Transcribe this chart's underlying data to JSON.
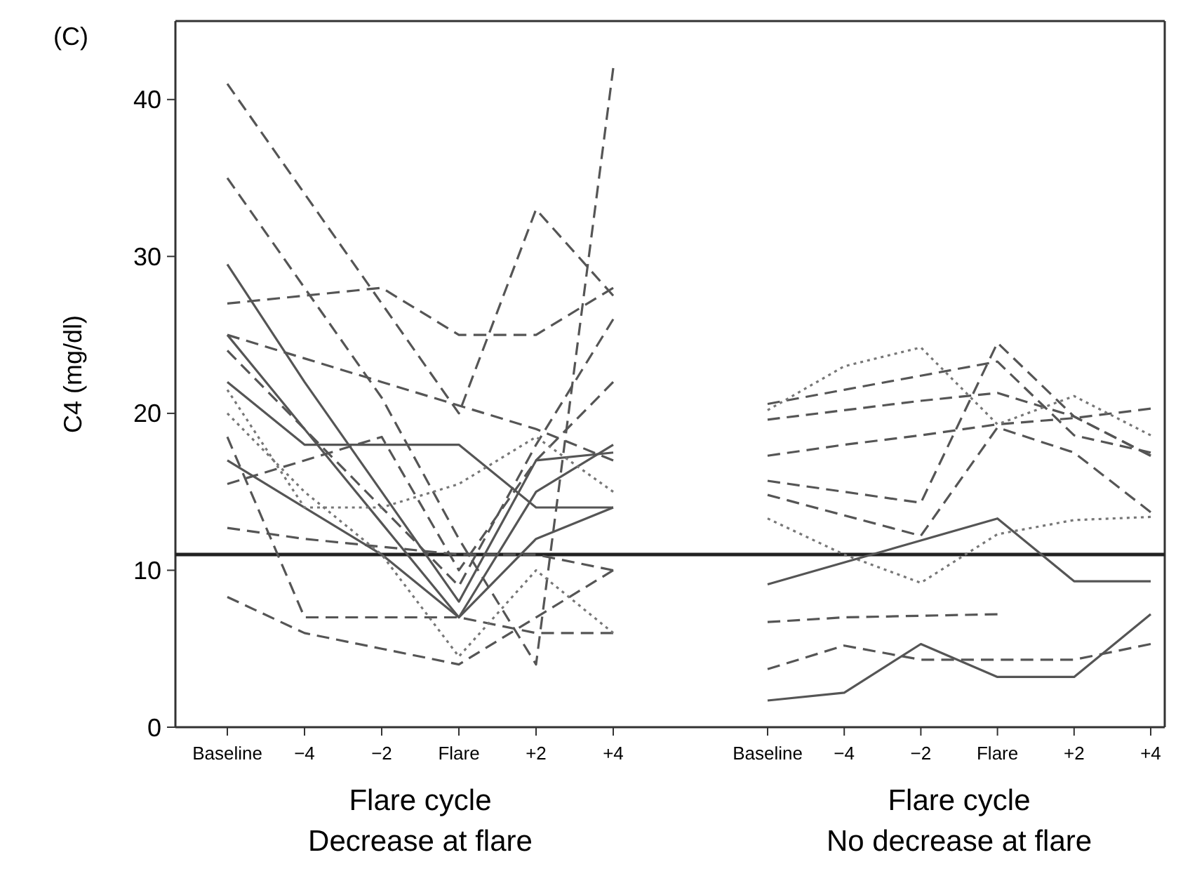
{
  "chart_data": [
    {
      "type": "line",
      "title": "(C)",
      "ylabel": "C4 (mg/dl)",
      "xlabel": "Flare cycle",
      "annotations": [
        "Decrease at flare"
      ],
      "categories": [
        "Baseline",
        "−4",
        "−2",
        "Flare",
        "+2",
        "+4"
      ],
      "ylim": [
        0,
        45
      ],
      "yticks": [
        0,
        10,
        20,
        30,
        40
      ],
      "ref_lines": [
        {
          "axis": "y",
          "value": 11,
          "color": "#222222"
        }
      ],
      "series": [
        {
          "color": "#555555",
          "line_style": "dashed",
          "values": [
            41,
            34,
            27,
            20,
            33,
            27.5
          ]
        },
        {
          "color": "#555555",
          "line_style": "dashed",
          "values": [
            35,
            28,
            21,
            12,
            4,
            42
          ]
        },
        {
          "color": "#555555",
          "line_style": "solid",
          "values": [
            29.5,
            22,
            15,
            8,
            17,
            17.5
          ]
        },
        {
          "color": "#555555",
          "line_style": "dashed",
          "values": [
            27,
            27.5,
            28,
            25,
            25,
            28
          ]
        },
        {
          "color": "#555555",
          "line_style": "dashed",
          "values": [
            25,
            23.5,
            22,
            20.5,
            19,
            17
          ]
        },
        {
          "color": "#555555",
          "line_style": "solid",
          "values": [
            25,
            19,
            13,
            7,
            12,
            14
          ]
        },
        {
          "color": "#555555",
          "line_style": "dashed",
          "values": [
            24,
            19,
            14,
            9,
            18,
            26
          ]
        },
        {
          "color": "#555555",
          "line_style": "dashed",
          "values": [
            15.5,
            17,
            18.5,
            10,
            17,
            22
          ]
        },
        {
          "color": "#555555",
          "line_style": "solid",
          "values": [
            17,
            14,
            11,
            7,
            15,
            18
          ]
        },
        {
          "color": "#555555",
          "line_style": "solid",
          "values": [
            22,
            18,
            18,
            18,
            14,
            14
          ]
        },
        {
          "color": "#555555",
          "line_style": "dashed",
          "values": [
            12.7,
            12,
            11.5,
            11,
            11,
            10
          ]
        },
        {
          "color": "#555555",
          "line_style": "dashed",
          "values": [
            18.5,
            7,
            7,
            7,
            6,
            6
          ]
        },
        {
          "color": "#555555",
          "line_style": "dashed",
          "values": [
            8.3,
            6,
            5,
            4,
            7,
            10
          ]
        },
        {
          "color": "#777777",
          "line_style": "dotted",
          "values": [
            21.5,
            14,
            14,
            15.5,
            18.5,
            15
          ]
        },
        {
          "color": "#777777",
          "line_style": "dotted",
          "values": [
            20,
            15,
            11,
            4.5,
            10,
            6
          ]
        }
      ]
    },
    {
      "type": "line",
      "xlabel": "Flare cycle",
      "annotations": [
        "No decrease at flare"
      ],
      "categories": [
        "Baseline",
        "−4",
        "−2",
        "Flare",
        "+2",
        "+4"
      ],
      "ylim": [
        0,
        45
      ],
      "tick_labels": "x",
      "ref_lines": [
        {
          "axis": "y",
          "value": 11,
          "color": "#222222"
        }
      ],
      "series": [
        {
          "color": "#555555",
          "line_style": "dashed",
          "values": [
            20.6,
            21.5,
            22.4,
            23.3,
            18.6,
            17.5
          ]
        },
        {
          "color": "#555555",
          "line_style": "dashed",
          "values": [
            19.6,
            20.2,
            20.8,
            21.3,
            19.8,
            17.3
          ]
        },
        {
          "color": "#555555",
          "line_style": "dashed",
          "values": [
            17.3,
            18,
            18.6,
            19.3,
            19.7,
            20.3
          ]
        },
        {
          "color": "#777777",
          "line_style": "dotted",
          "values": [
            20.2,
            23,
            24.2,
            19.3,
            21.1,
            18.6
          ]
        },
        {
          "color": "#555555",
          "line_style": "dashed",
          "values": [
            15.7,
            15,
            14.3,
            24.5,
            19.8,
            17.3
          ]
        },
        {
          "color": "#555555",
          "line_style": "dashed",
          "values": [
            14.8,
            13.5,
            12.2,
            19.1,
            17.5,
            13.7
          ]
        },
        {
          "color": "#777777",
          "line_style": "dotted",
          "values": [
            13.3,
            11,
            9.2,
            12.3,
            13.2,
            13.4
          ]
        },
        {
          "color": "#555555",
          "line_style": "solid",
          "values": [
            9.1,
            10.5,
            11.9,
            13.3,
            9.3,
            9.3
          ]
        },
        {
          "color": "#555555",
          "line_style": "dashed",
          "values": [
            6.7,
            7,
            7.1,
            7.2,
            null,
            null
          ]
        },
        {
          "color": "#555555",
          "line_style": "dashed",
          "values": [
            3.7,
            5.2,
            4.3,
            4.3,
            4.3,
            5.3
          ]
        },
        {
          "color": "#555555",
          "line_style": "solid",
          "values": [
            1.7,
            2.2,
            5.3,
            3.2,
            3.2,
            7.2
          ]
        }
      ]
    }
  ]
}
